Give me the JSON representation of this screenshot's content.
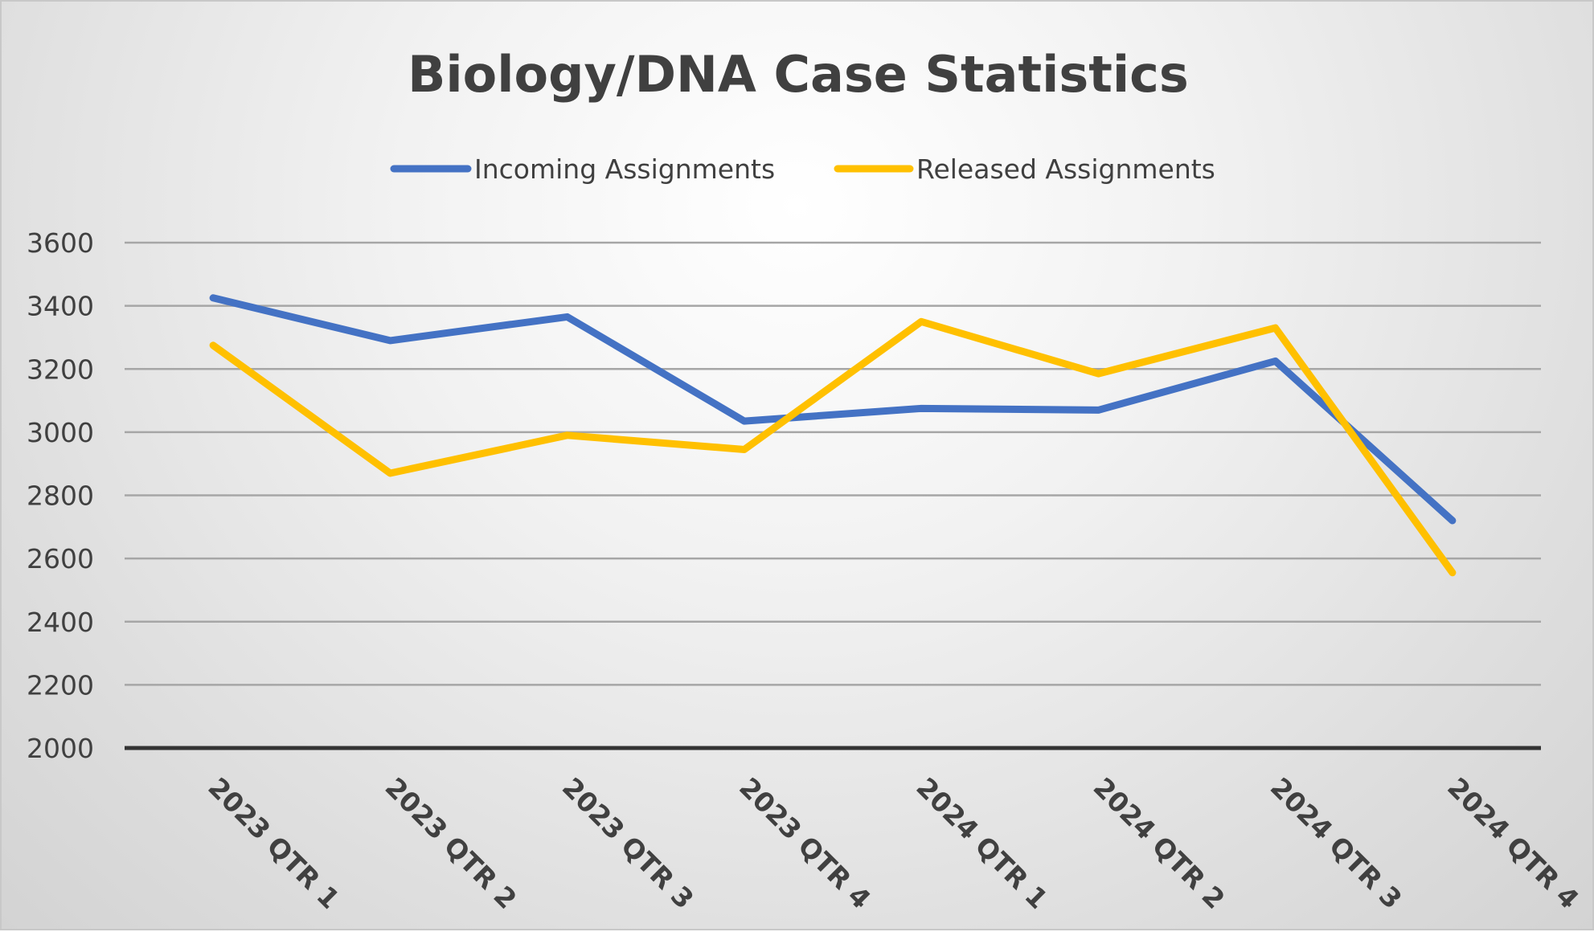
{
  "chart_data": {
    "type": "line",
    "title": "Biology/DNA Case Statistics",
    "categories": [
      "2023 QTR 1",
      "2023 QTR 2",
      "2023 QTR 3",
      "2023 QTR 4",
      "2024 QTR 1",
      "2024 QTR 2",
      "2024 QTR 3",
      "2024 QTR 4"
    ],
    "series": [
      {
        "name": "Incoming Assignments",
        "color": "#4472C4",
        "values": [
          3425,
          3290,
          3365,
          3035,
          3075,
          3070,
          3225,
          2720
        ]
      },
      {
        "name": "Released Assignments",
        "color": "#FFC000",
        "values": [
          3275,
          2870,
          2990,
          2945,
          3350,
          3185,
          3330,
          2555
        ]
      }
    ],
    "ylim": [
      2000,
      3600
    ],
    "yticks": [
      2000,
      2200,
      2400,
      2600,
      2800,
      3000,
      3200,
      3400,
      3600
    ],
    "grid": true,
    "legend_position": "top"
  }
}
